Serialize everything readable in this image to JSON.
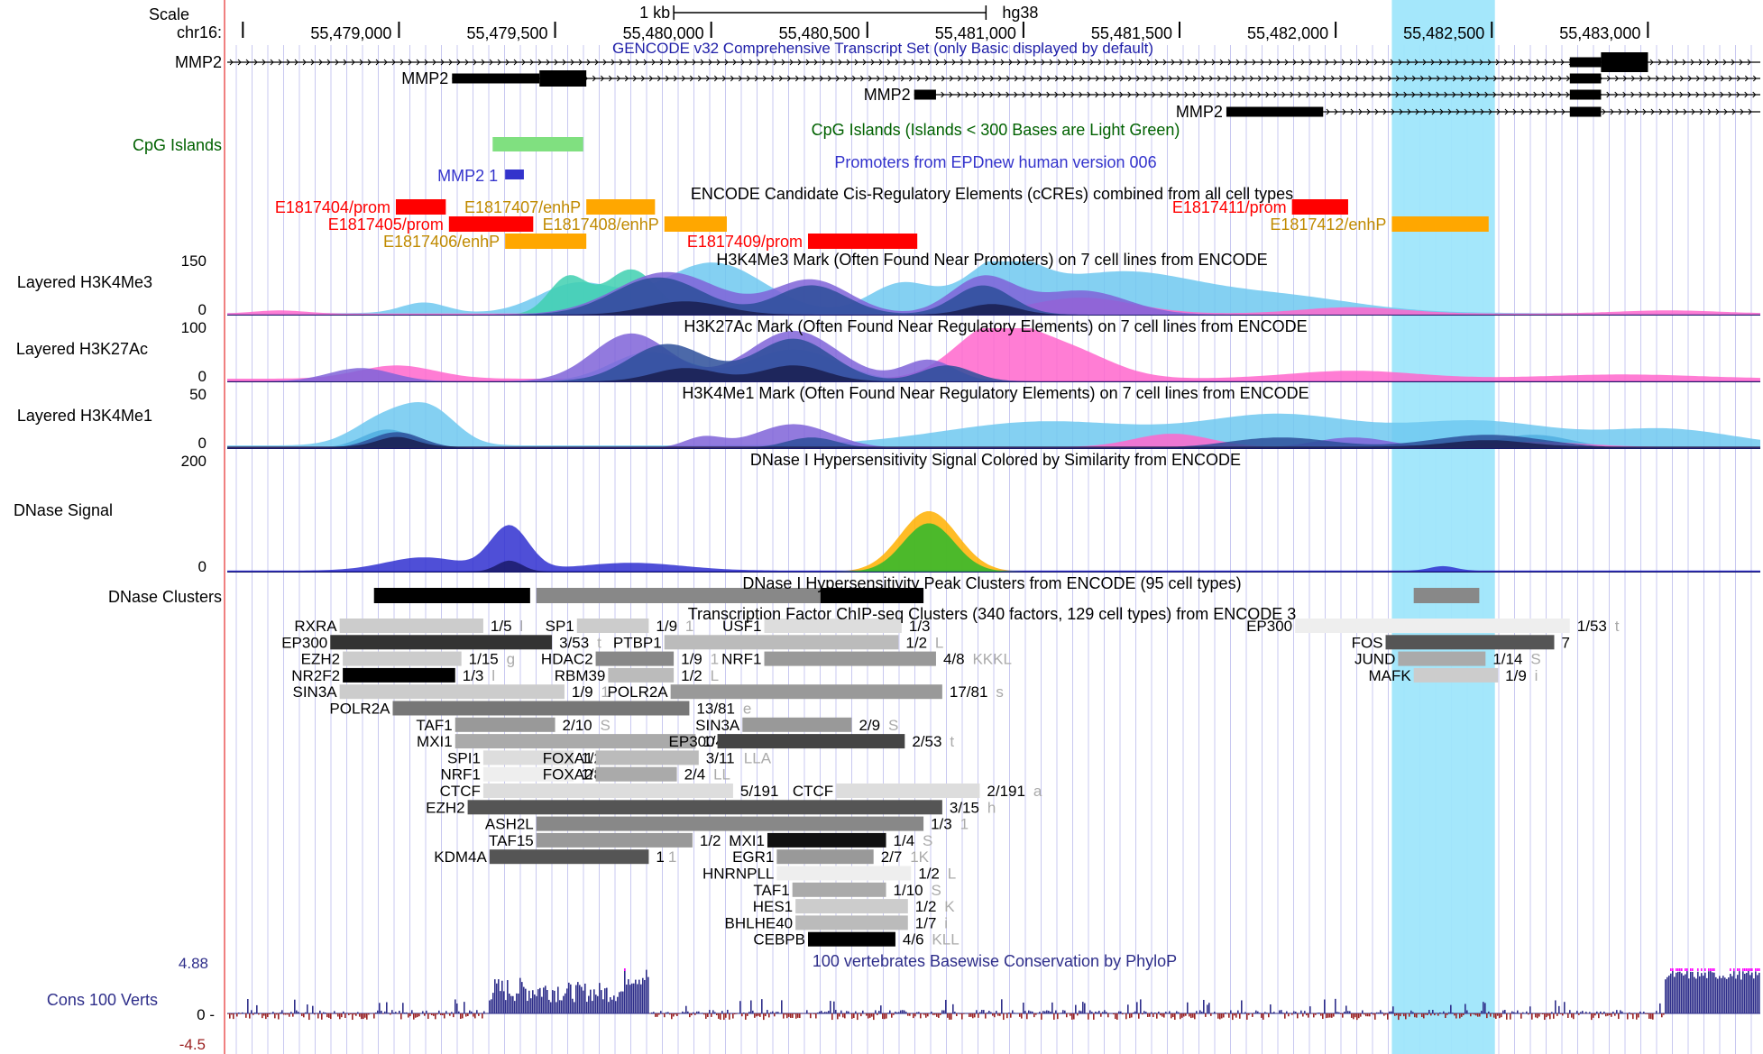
{
  "colors": {
    "prom": "#ff0000",
    "enh": "#ffa700",
    "enhText": "#c08a00",
    "cpgTrack": "#006100",
    "cpgBox": "#80e080",
    "epd": "#3333cc",
    "gencodeTitle": "#1f1fa8",
    "highlight": "#9fe6fb",
    "consLabel": "#2e2e8a",
    "consNeg": "#9b2222",
    "consPos": "#2e2e8a",
    "consClip": "#ff00ff",
    "gridline": "#c8c8f0",
    "leftBorder": "#f08080"
  },
  "ruler": {
    "scale_label": "Scale",
    "chrom_label": "chr16:",
    "kb_label": "1 kb",
    "assembly": "hg38",
    "ticks": [
      {
        "pos": 55478500,
        "label": ""
      },
      {
        "pos": 55479000,
        "label": "55,479,000"
      },
      {
        "pos": 55479500,
        "label": "55,479,500"
      },
      {
        "pos": 55480000,
        "label": "55,480,000"
      },
      {
        "pos": 55480500,
        "label": "55,480,500"
      },
      {
        "pos": 55481000,
        "label": "55,481,000"
      },
      {
        "pos": 55481500,
        "label": "55,481,500"
      },
      {
        "pos": 55482000,
        "label": "55,482,000"
      },
      {
        "pos": 55482500,
        "label": "55,482,500"
      },
      {
        "pos": 55483000,
        "label": "55,483,000"
      }
    ]
  },
  "view": {
    "start": 55478450,
    "end": 55483360,
    "highlight": [
      55482180,
      55482510
    ]
  },
  "tracks": {
    "gencode": {
      "title": "GENCODE v32 Comprehensive Transcript Set (only Basic displayed by default)",
      "left_label": "MMP2",
      "transcripts": [
        {
          "label": "",
          "start": 55478450,
          "end": 55483360,
          "exons": [
            [
              55482750,
              55482850
            ],
            [
              55482850,
              55483000
            ]
          ]
        },
        {
          "label": "MMP2",
          "start": 55479170,
          "end": 55483360,
          "exons": [
            [
              55479170,
              55479450
            ],
            [
              55479450,
              55479600
            ],
            [
              55482750,
              55482850
            ]
          ]
        },
        {
          "label": "MMP2",
          "start": 55480650,
          "end": 55483360,
          "exons": [
            [
              55480650,
              55480720
            ],
            [
              55482750,
              55482850
            ]
          ]
        },
        {
          "label": "MMP2",
          "start": 55481650,
          "end": 55483360,
          "exons": [
            [
              55481650,
              55481960
            ],
            [
              55482750,
              55482850
            ]
          ]
        }
      ]
    },
    "cpg": {
      "label": "CpG Islands",
      "title": "CpG Islands (Islands < 300 Bases are Light Green)",
      "islands": [
        [
          55479300,
          55479590
        ]
      ]
    },
    "epd": {
      "title": "Promoters from EPDnew human version 006",
      "items": [
        {
          "label": "MMP2_1",
          "start": 55479340,
          "end": 55479400
        }
      ]
    },
    "ccre": {
      "title": "ENCODE Candidate Cis-Regulatory Elements (cCREs) combined from all cell types",
      "items": [
        {
          "label": "E1817404/prom",
          "type": "prom",
          "start": 55478990,
          "end": 55479150,
          "row": 0
        },
        {
          "label": "E1817405/prom",
          "type": "prom",
          "start": 55479160,
          "end": 55479430,
          "row": 1
        },
        {
          "label": "E1817406/enhP",
          "type": "enh",
          "start": 55479340,
          "end": 55479600,
          "row": 2
        },
        {
          "label": "E1817407/enhP",
          "type": "enh",
          "start": 55479600,
          "end": 55479820,
          "row": 0
        },
        {
          "label": "E1817408/enhP",
          "type": "enh",
          "start": 55479850,
          "end": 55480050,
          "row": 1
        },
        {
          "label": "E1817409/prom",
          "type": "prom",
          "start": 55480310,
          "end": 55480660,
          "row": 2
        },
        {
          "label": "E1817411/prom",
          "type": "prom",
          "start": 55481860,
          "end": 55482040,
          "row": 0
        },
        {
          "label": "E1817412/enhP",
          "type": "enh",
          "start": 55482180,
          "end": 55482490,
          "row": 1
        }
      ]
    },
    "h3k4me3": {
      "label": "Layered H3K4Me3",
      "title": "H3K4Me3 Mark (Often Found Near Promoters) on 7 cell lines from ENCODE",
      "max": "150",
      "min": "0"
    },
    "h3k27ac": {
      "label": "Layered H3K27Ac",
      "title": "H3K27Ac Mark (Often Found Near Regulatory Elements) on 7 cell lines from ENCODE",
      "max": "100",
      "min": "0"
    },
    "h3k4me1": {
      "label": "Layered H3K4Me1",
      "title": "H3K4Me1 Mark (Often Found Near Regulatory Elements) on 7 cell lines from ENCODE",
      "max": "50",
      "min": "0"
    },
    "dnase_signal": {
      "label": "DNase Signal",
      "title": "DNase I Hypersensitivity Signal Colored by Similarity from ENCODE",
      "max": "200",
      "min": "0"
    },
    "dnase_clusters": {
      "label": "DNase Clusters",
      "title": "DNase I Hypersensitivity Peak Clusters from ENCODE (95 cell types)",
      "items": [
        {
          "start": 55478920,
          "end": 55479420,
          "shade": "#000000"
        },
        {
          "start": 55479440,
          "end": 55480480,
          "shade": "#888888"
        },
        {
          "start": 55480350,
          "end": 55480680,
          "shade": "#000000"
        },
        {
          "start": 55482250,
          "end": 55482460,
          "shade": "#888888"
        }
      ]
    },
    "tfbs": {
      "title": "Transcription Factor ChIP-seq Clusters (340 factors, 129 cell types) from ENCODE 3",
      "items": [
        {
          "factor": "RXRA",
          "score": "1/5",
          "cells": "l",
          "start": 55478810,
          "end": 55479270,
          "row": 0,
          "shade": "#cccccc"
        },
        {
          "factor": "SP1",
          "score": "1/9",
          "cells": "1",
          "start": 55479570,
          "end": 55479800,
          "row": 0,
          "shade": "#cccccc"
        },
        {
          "factor": "USF1",
          "score": "1/3",
          "cells": "",
          "start": 55480170,
          "end": 55480610,
          "row": 0,
          "shade": "#dddddd"
        },
        {
          "factor": "EP300",
          "score": "1/53",
          "cells": "t",
          "start": 55481870,
          "end": 55482750,
          "row": 0,
          "shade": "#eeeeee"
        },
        {
          "factor": "EP300",
          "score": "3/53",
          "cells": "t",
          "start": 55478780,
          "end": 55479490,
          "row": 1,
          "shade": "#333333"
        },
        {
          "factor": "PTBP1",
          "score": "1/2",
          "cells": "L",
          "start": 55479850,
          "end": 55480600,
          "row": 1,
          "shade": "#bbbbbb"
        },
        {
          "factor": "FOS",
          "score": "7",
          "cells": "",
          "start": 55482160,
          "end": 55482700,
          "row": 1,
          "shade": "#555555"
        },
        {
          "factor": "EZH2",
          "score": "1/15",
          "cells": "g",
          "start": 55478820,
          "end": 55479200,
          "row": 2,
          "shade": "#cccccc"
        },
        {
          "factor": "HDAC2",
          "score": "1/9",
          "cells": "1",
          "start": 55479630,
          "end": 55479880,
          "row": 2,
          "shade": "#888888"
        },
        {
          "factor": "NRF1",
          "score": "4/8",
          "cells": "KKKL",
          "start": 55480170,
          "end": 55480720,
          "row": 2,
          "shade": "#999999"
        },
        {
          "factor": "JUND",
          "score": "1/14",
          "cells": "S",
          "start": 55482200,
          "end": 55482480,
          "row": 2,
          "shade": "#aaaaaa"
        },
        {
          "factor": "NR2F2",
          "score": "1/3",
          "cells": "l",
          "start": 55478820,
          "end": 55479180,
          "row": 3,
          "shade": "#000000"
        },
        {
          "factor": "RBM39",
          "score": "1/2",
          "cells": "L",
          "start": 55479670,
          "end": 55479880,
          "row": 3,
          "shade": "#bbbbbb"
        },
        {
          "factor": "MAFK",
          "score": "1/9",
          "cells": "i",
          "start": 55482250,
          "end": 55482520,
          "row": 3,
          "shade": "#cccccc"
        },
        {
          "factor": "SIN3A",
          "score": "1/9",
          "cells": "1",
          "start": 55478810,
          "end": 55479530,
          "row": 4,
          "shade": "#cccccc"
        },
        {
          "factor": "POLR2A",
          "score": "17/81",
          "cells": "s",
          "start": 55479870,
          "end": 55480740,
          "row": 4,
          "shade": "#999999"
        },
        {
          "factor": "POLR2A",
          "score": "13/81",
          "cells": "e",
          "start": 55478980,
          "end": 55479930,
          "row": 5,
          "shade": "#777777"
        },
        {
          "factor": "TAF1",
          "score": "2/10",
          "cells": "S",
          "start": 55479180,
          "end": 55479500,
          "row": 6,
          "shade": "#999999"
        },
        {
          "factor": "SIN3A",
          "score": "2/9",
          "cells": "S",
          "start": 55480100,
          "end": 55480450,
          "row": 6,
          "shade": "#999999"
        },
        {
          "factor": "MXI1",
          "score": "1/4",
          "cells": "S",
          "start": 55479180,
          "end": 55479950,
          "row": 7,
          "shade": "#aaaaaa"
        },
        {
          "factor": "EP300",
          "score": "2/53",
          "cells": "t",
          "start": 55480020,
          "end": 55480620,
          "row": 7,
          "shade": "#444444"
        },
        {
          "factor": "SPI1",
          "score": "1/2",
          "cells": "h",
          "start": 55479270,
          "end": 55479560,
          "row": 8,
          "shade": "#dddddd"
        },
        {
          "factor": "FOXA1",
          "score": "3/11",
          "cells": "LLA",
          "start": 55479630,
          "end": 55479960,
          "row": 8,
          "shade": "#bbbbbb"
        },
        {
          "factor": "NRF1",
          "score": "1/8",
          "cells": "L",
          "start": 55479270,
          "end": 55479560,
          "row": 9,
          "shade": "#eeeeee"
        },
        {
          "factor": "FOXA2",
          "score": "2/4",
          "cells": "LL",
          "start": 55479630,
          "end": 55479890,
          "row": 9,
          "shade": "#aaaaaa"
        },
        {
          "factor": "CTCF",
          "score": "5/191",
          "cells": "",
          "start": 55479270,
          "end": 55480070,
          "row": 10,
          "shade": "#dddddd"
        },
        {
          "factor": "CTCF",
          "score": "2/191",
          "cells": "a",
          "start": 55480400,
          "end": 55480860,
          "row": 10,
          "shade": "#dddddd"
        },
        {
          "factor": "EZH2",
          "score": "3/15",
          "cells": "h",
          "start": 55479220,
          "end": 55480740,
          "row": 11,
          "shade": "#555555"
        },
        {
          "factor": "ASH2L",
          "score": "1/3",
          "cells": "1",
          "start": 55479440,
          "end": 55480680,
          "row": 12,
          "shade": "#888888"
        },
        {
          "factor": "TAF15",
          "score": "1/2",
          "cells": "L",
          "start": 55479440,
          "end": 55479940,
          "row": 13,
          "shade": "#999999"
        },
        {
          "factor": "MXI1",
          "score": "1/4",
          "cells": "S",
          "start": 55480180,
          "end": 55480560,
          "row": 13,
          "shade": "#111111"
        },
        {
          "factor": "KDM4A",
          "score": "1",
          "cells": "1",
          "start": 55479290,
          "end": 55479800,
          "row": 14,
          "shade": "#555555"
        },
        {
          "factor": "EGR1",
          "score": "2/7",
          "cells": "1K",
          "start": 55480210,
          "end": 55480520,
          "row": 14,
          "shade": "#999999"
        },
        {
          "factor": "HNRNPLL",
          "score": "1/2",
          "cells": "L",
          "start": 55480210,
          "end": 55480640,
          "row": 15,
          "shade": "#eeeeee"
        },
        {
          "factor": "TAF1",
          "score": "1/10",
          "cells": "S",
          "start": 55480260,
          "end": 55480560,
          "row": 16,
          "shade": "#aaaaaa"
        },
        {
          "factor": "HES1",
          "score": "1/2",
          "cells": "K",
          "start": 55480270,
          "end": 55480630,
          "row": 17,
          "shade": "#cccccc"
        },
        {
          "factor": "BHLHE40",
          "score": "1/7",
          "cells": "i",
          "start": 55480270,
          "end": 55480630,
          "row": 18,
          "shade": "#bbbbbb"
        },
        {
          "factor": "CEBPB",
          "score": "4/6",
          "cells": "KLL",
          "start": 55480310,
          "end": 55480590,
          "row": 19,
          "shade": "#000000"
        }
      ]
    },
    "conservation": {
      "label": "Cons 100 Verts",
      "title": "100 vertebrates Basewise Conservation by PhyloP",
      "max": "4.88",
      "zero": "0 -",
      "min": "-4.5"
    }
  }
}
